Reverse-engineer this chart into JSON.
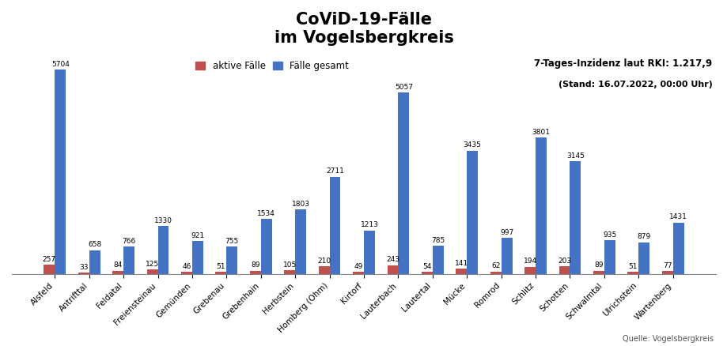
{
  "title": "CoViD-19-Fälle\nim Vogelsbergkreis",
  "categories": [
    "Alsfeld",
    "Antrifttal",
    "Feldatal",
    "Freiensteinau",
    "Gemünden",
    "Grebenau",
    "Grebenhain",
    "Herbstein",
    "Homberg (Ohm)",
    "Kirtorf",
    "Lauterbach",
    "Lautertal",
    "Mücke",
    "Romrod",
    "Schlitz",
    "Schotten",
    "Schwalmtal",
    "Ulrichstein",
    "Wartenberg"
  ],
  "faelle_gesamt": [
    5704,
    658,
    766,
    1330,
    921,
    755,
    1534,
    1803,
    2711,
    1213,
    5057,
    785,
    3435,
    997,
    3801,
    3145,
    935,
    879,
    1431
  ],
  "aktive_faelle": [
    257,
    33,
    84,
    125,
    46,
    51,
    89,
    105,
    210,
    49,
    243,
    54,
    141,
    62,
    194,
    203,
    89,
    51,
    77
  ],
  "color_gesamt": "#4472C4",
  "color_aktiv": "#C0504D",
  "legend_aktiv": "aktive Fälle",
  "legend_gesamt": "Fälle gesamt",
  "annotation_line1": "7-Tages-Inzidenz laut RKI: 1.217,9",
  "annotation_line2": "(Stand: 16.07.2022, 00:00 Uhr)",
  "source": "Quelle: Vogelsbergkreis",
  "background_color": "#FFFFFF",
  "title_fontsize": 15,
  "label_fontsize": 6.5,
  "bar_width": 0.32,
  "ylim": 6200
}
